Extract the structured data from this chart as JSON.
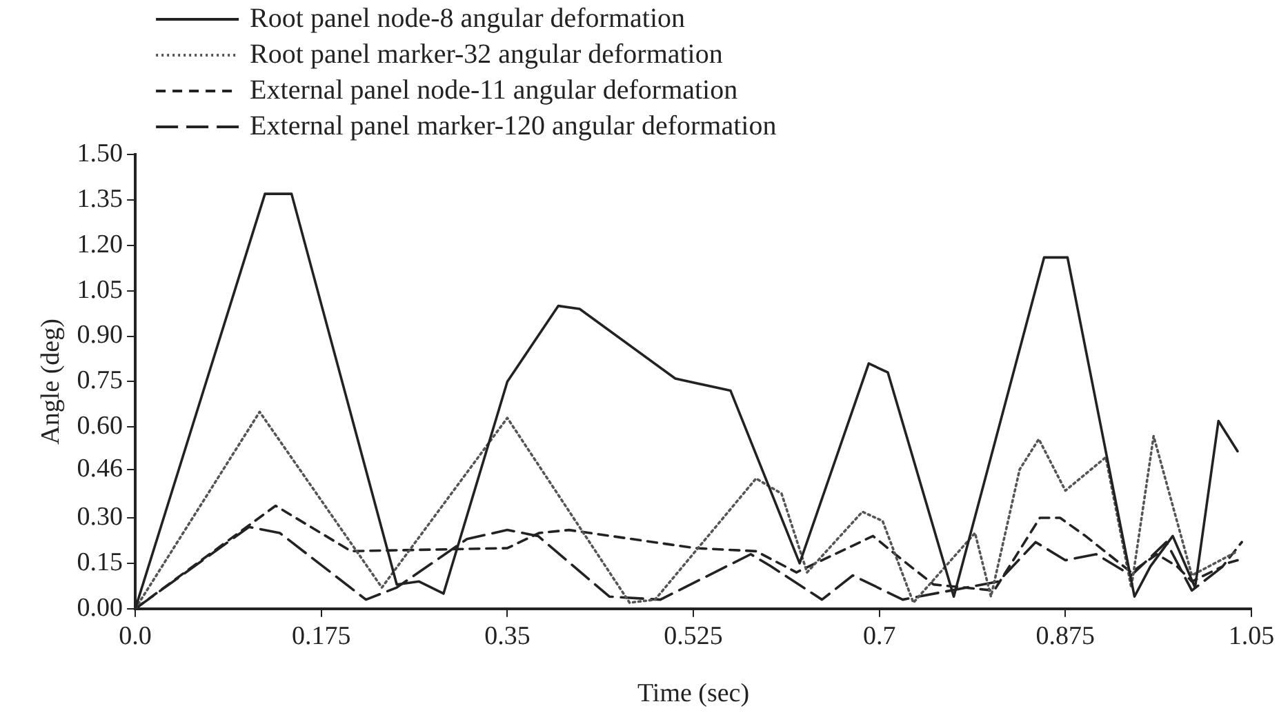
{
  "chart_data": {
    "type": "line",
    "xlabel": "Time (sec)",
    "ylabel": "Angle (deg)",
    "xlim": [
      0,
      1.05
    ],
    "xticks": [
      {
        "value": 0,
        "label": "0.0"
      },
      0.175,
      0.35,
      0.525,
      0.7,
      0.875,
      1.05
    ],
    "ylim": [
      0,
      1.5
    ],
    "yticks": [
      {
        "value": 0,
        "label": "0.00"
      },
      {
        "value": 0.15,
        "label": "0.15"
      },
      {
        "value": 0.3,
        "label": "0.30"
      },
      0.46,
      {
        "value": 0.6,
        "label": "0.60"
      },
      {
        "value": 0.75,
        "label": "0.75"
      },
      {
        "value": 0.9,
        "label": "0.90"
      },
      {
        "value": 1.05,
        "label": "1.05"
      },
      {
        "value": 1.2,
        "label": "1.20"
      },
      {
        "value": 1.35,
        "label": "1.35"
      },
      {
        "value": 1.5,
        "label": "1.50"
      }
    ],
    "grid": false,
    "legend": "top",
    "marker": "none",
    "series": [
      {
        "name": "Root panel node-8 angular deformation",
        "color": "#222222",
        "line_style": "solid",
        "x": [
          0,
          0.122,
          0.147,
          0.246,
          0.267,
          0.29,
          0.35,
          0.398,
          0.418,
          0.508,
          0.56,
          0.625,
          0.69,
          0.708,
          0.77,
          0.855,
          0.877,
          0.94,
          0.955,
          0.976,
          0.997,
          1.019,
          1.037
        ],
        "values": [
          0,
          1.37,
          1.37,
          0.08,
          0.09,
          0.05,
          0.75,
          1.0,
          0.99,
          0.76,
          0.72,
          0.15,
          0.81,
          0.78,
          0.04,
          1.16,
          1.16,
          0.04,
          0.14,
          0.24,
          0.07,
          0.62,
          0.52
        ]
      },
      {
        "name": "Root panel marker-32 angular deformation",
        "color": "#555555",
        "line_style": "dotted",
        "x": [
          0,
          0.117,
          0.232,
          0.35,
          0.465,
          0.489,
          0.584,
          0.608,
          0.632,
          0.684,
          0.703,
          0.732,
          0.79,
          0.805,
          0.832,
          0.85,
          0.875,
          0.913,
          0.937,
          0.958,
          0.994,
          1.037
        ],
        "values": [
          0,
          0.65,
          0.07,
          0.63,
          0.02,
          0.03,
          0.43,
          0.38,
          0.12,
          0.32,
          0.29,
          0.02,
          0.25,
          0.04,
          0.46,
          0.56,
          0.39,
          0.5,
          0.07,
          0.57,
          0.11,
          0.19
        ]
      },
      {
        "name": "External panel node-11 angular deformation",
        "color": "#222222",
        "line_style": "dashed",
        "x": [
          0,
          0.132,
          0.203,
          0.35,
          0.38,
          0.408,
          0.527,
          0.584,
          0.622,
          0.694,
          0.722,
          0.751,
          0.808,
          0.851,
          0.87,
          0.894,
          0.937,
          0.961,
          0.98,
          0.994,
          1.023,
          1.041
        ],
        "values": [
          0,
          0.34,
          0.19,
          0.2,
          0.25,
          0.26,
          0.2,
          0.19,
          0.12,
          0.24,
          0.16,
          0.08,
          0.06,
          0.3,
          0.3,
          0.24,
          0.12,
          0.18,
          0.14,
          0.09,
          0.14,
          0.22
        ]
      },
      {
        "name": "External panel marker-120 angular deformation",
        "color": "#222222",
        "line_style": "longdash",
        "x": [
          0,
          0.107,
          0.136,
          0.217,
          0.246,
          0.312,
          0.35,
          0.379,
          0.446,
          0.494,
          0.579,
          0.598,
          0.646,
          0.675,
          0.722,
          0.812,
          0.847,
          0.875,
          0.904,
          0.937,
          0.97,
          0.994,
          1.027,
          1.037
        ],
        "values": [
          0,
          0.27,
          0.25,
          0.03,
          0.07,
          0.23,
          0.26,
          0.24,
          0.04,
          0.03,
          0.18,
          0.14,
          0.03,
          0.11,
          0.03,
          0.09,
          0.22,
          0.16,
          0.18,
          0.11,
          0.22,
          0.06,
          0.15,
          0.16
        ]
      }
    ]
  }
}
